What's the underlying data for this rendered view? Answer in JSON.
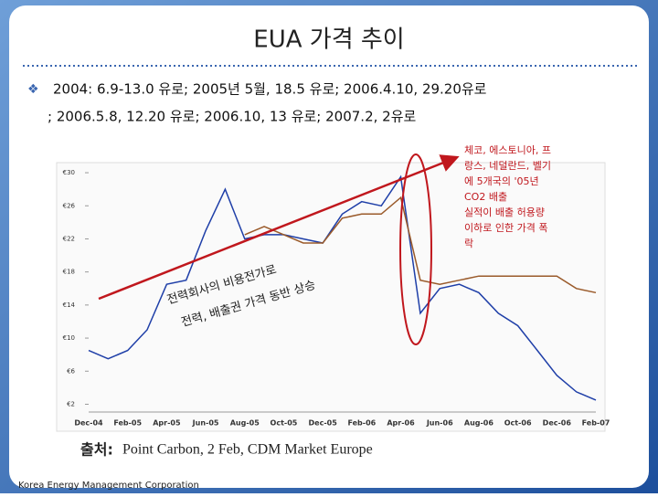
{
  "slide_title": "EUA 가격 추이",
  "bullet_lines": [
    "2004: 6.9-13.0 유로; 2005년 5월, 18.5 유로; 2006.4.10, 29.20유로",
    "; 2006.5.8, 12.20 유로; 2006.10, 13 유로; 2007.2, 2유로"
  ],
  "annotation_lines": [
    "체코, 에스토니아, 프",
    "랑스, 네덜란드, 벨기",
    "에 5개국의 '05년",
    "CO2 배출",
    "실적이 배출 허용량",
    "이하로 인한 가격 폭",
    "락"
  ],
  "trend_lines": [
    "전력회사의 비용전가로",
    "전력, 배출권 가격 동반 상승"
  ],
  "source": {
    "label": "출처:",
    "text": "Point Carbon, 2 Feb, CDM Market Europe"
  },
  "footer": "Korea Energy Management Corporation",
  "chart_data": {
    "type": "line",
    "categories": [
      "Dec-04",
      null,
      "Feb-05",
      null,
      "Apr-05",
      null,
      "Jun-05",
      null,
      "Aug-05",
      null,
      "Oct-05",
      null,
      "Dec-05",
      null,
      "Feb-06",
      null,
      "Apr-06",
      null,
      "Jun-06",
      null,
      "Aug-06",
      null,
      "Oct-06",
      null,
      "Dec-06",
      null,
      "Feb-07"
    ],
    "series": [
      {
        "color": "#1f3fa8",
        "values": [
          8.5,
          7.5,
          8.5,
          11,
          16.5,
          17,
          23,
          28,
          22,
          22.5,
          22.5,
          22,
          21.5,
          25,
          26.5,
          26,
          29.5,
          13,
          16,
          16.5,
          15.5,
          13,
          11.5,
          8.5,
          5.5,
          3.5,
          2.5
        ]
      },
      {
        "color": "#9a5a2a",
        "values": [
          null,
          null,
          null,
          null,
          null,
          null,
          null,
          null,
          22.5,
          23.5,
          22.5,
          21.5,
          21.5,
          24.5,
          25,
          25,
          27,
          17,
          16.5,
          17,
          17.5,
          17.5,
          17.5,
          17.5,
          17.5,
          16,
          15.5
        ]
      }
    ],
    "ylim": [
      1.5,
      31
    ],
    "yticks": [
      {
        "value": 2,
        "label": "€2"
      },
      {
        "value": 6,
        "label": "€6"
      },
      {
        "value": 10,
        "label": "€10"
      },
      {
        "value": 14,
        "label": "€14"
      },
      {
        "value": 18,
        "label": "€18"
      },
      {
        "value": 22,
        "label": "€22"
      },
      {
        "value": 26,
        "label": "€26"
      },
      {
        "value": 30,
        "label": "€30"
      }
    ],
    "grid": false
  }
}
